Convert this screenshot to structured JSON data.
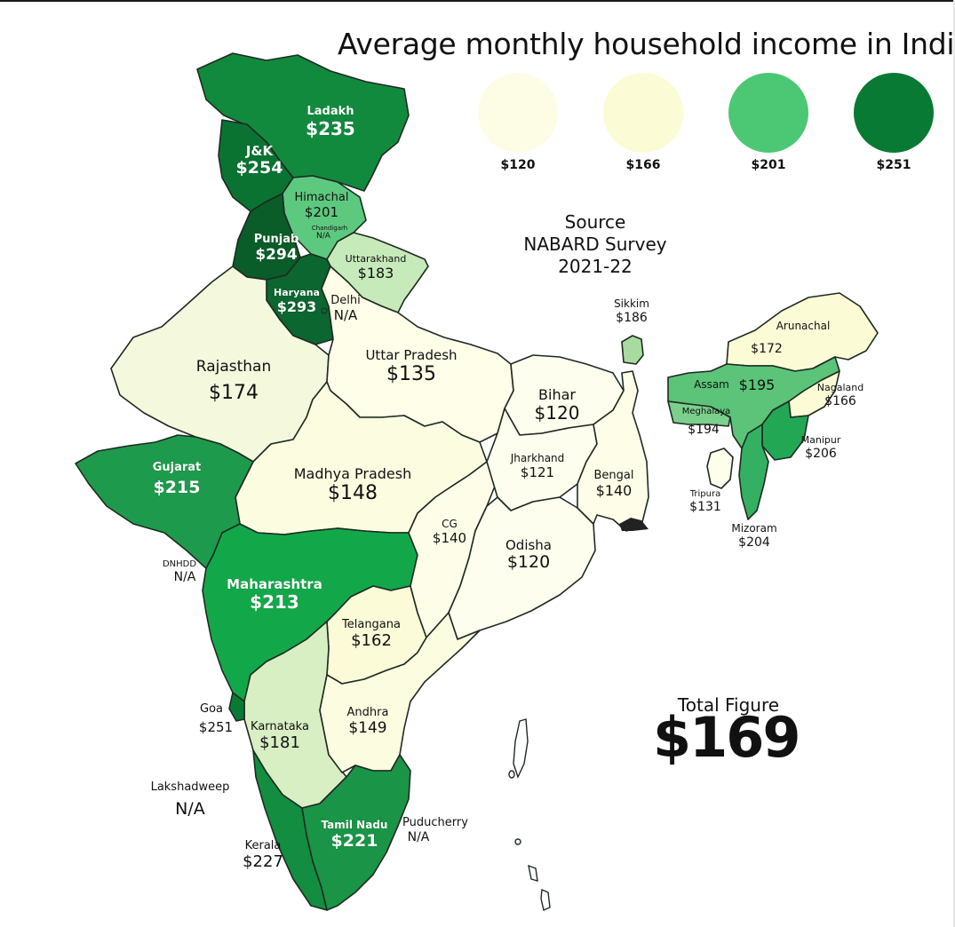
{
  "title": "Average monthly household income in India",
  "legend": [
    {
      "label": "$120",
      "color": "#fdfde6"
    },
    {
      "label": "$166",
      "color": "#fbfbd5"
    },
    {
      "label": "$201",
      "color": "#4cc774"
    },
    {
      "label": "$251",
      "color": "#097a33"
    }
  ],
  "source": {
    "heading": "Source",
    "text": "NABARD Survey 2021-22"
  },
  "total": {
    "label": "Total Figure",
    "value": "$169"
  },
  "regions": {
    "ladakh": {
      "name": "Ladakh",
      "value": "$235",
      "color": "#128a3e"
    },
    "jk": {
      "name": "J&K",
      "value": "$254",
      "color": "#0b7332"
    },
    "himachal": {
      "name": "Himachal",
      "value": "$201",
      "color": "#5cc97f"
    },
    "chandigarh": {
      "name": "Chandigarh",
      "value": "N/A"
    },
    "punjab": {
      "name": "Punjab",
      "value": "$294",
      "color": "#0a5c28"
    },
    "haryana": {
      "name": "Haryana",
      "value": "$293",
      "color": "#0b6630"
    },
    "uttarakhand": {
      "name": "Uttarakhand",
      "value": "$183",
      "color": "#c6eab9"
    },
    "delhi": {
      "name": "Delhi",
      "value": "N/A"
    },
    "rajasthan": {
      "name": "Rajasthan",
      "value": "$174",
      "color": "#f4f8dc"
    },
    "uttar_pradesh": {
      "name": "Uttar Pradesh",
      "value": "$135",
      "color": "#fefee9"
    },
    "bihar": {
      "name": "Bihar",
      "value": "$120",
      "color": "#fefeee"
    },
    "sikkim": {
      "name": "Sikkim",
      "value": "$186",
      "color": "#a9dba0"
    },
    "arunachal": {
      "name": "Arunachal",
      "value": "$172",
      "color": "#fbfbd6"
    },
    "assam": {
      "name": "Assam",
      "value": "$195",
      "color": "#5bc478"
    },
    "nagaland": {
      "name": "Nagaland",
      "value": "$166",
      "color": "#fbfbd6"
    },
    "meghalaya": {
      "name": "Meghalaya",
      "value": "$194",
      "color": "#7bd08c"
    },
    "manipur": {
      "name": "Manipur",
      "value": "$206",
      "color": "#22a854"
    },
    "tripura": {
      "name": "Tripura",
      "value": "$131",
      "color": "#fefeec"
    },
    "mizoram": {
      "name": "Mizoram",
      "value": "$204",
      "color": "#34b062"
    },
    "gujarat": {
      "name": "Gujarat",
      "value": "$215",
      "color": "#1e9a4c"
    },
    "madhya_pradesh": {
      "name": "Madhya Pradesh",
      "value": "$148",
      "color": "#fcfde0"
    },
    "jharkhand": {
      "name": "Jharkhand",
      "value": "$121",
      "color": "#fefeee"
    },
    "bengal": {
      "name": "Bengal",
      "value": "$140",
      "color": "#fefee8"
    },
    "cg": {
      "name": "CG",
      "value": "$140",
      "color": "#fefee8"
    },
    "odisha": {
      "name": "Odisha",
      "value": "$120",
      "color": "#fefeee"
    },
    "dnhdd": {
      "name": "DNHDD",
      "value": "N/A"
    },
    "maharashtra": {
      "name": "Maharashtra",
      "value": "$213",
      "color": "#12a84a"
    },
    "telangana": {
      "name": "Telangana",
      "value": "$162",
      "color": "#fbfbd8"
    },
    "goa": {
      "name": "Goa",
      "value": "$251",
      "color": "#097a33"
    },
    "karnataka": {
      "name": "Karnataka",
      "value": "$181",
      "color": "#d8efc4"
    },
    "andhra": {
      "name": "Andhra",
      "value": "$149",
      "color": "#fcfde0"
    },
    "lakshadweep": {
      "name": "Lakshadweep",
      "value": "N/A"
    },
    "kerala": {
      "name": "Kerala",
      "value": "$227",
      "color": "#138d40"
    },
    "tamil_nadu": {
      "name": "Tamil Nadu",
      "value": "$221",
      "color": "#1a9446"
    },
    "puducherry": {
      "name": "Puducherry",
      "value": "N/A"
    }
  }
}
